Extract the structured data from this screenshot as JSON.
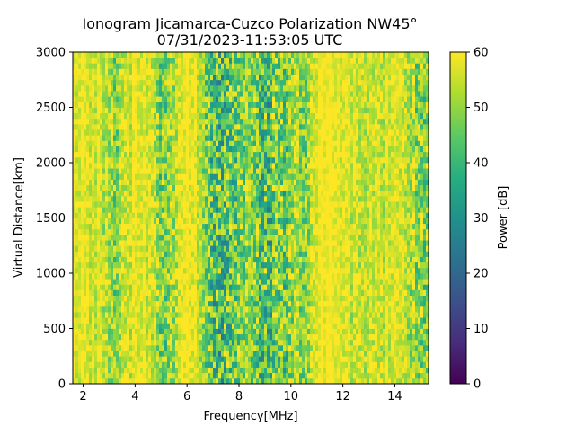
{
  "chart_data": {
    "type": "heatmap",
    "title": "Ionogram Jicamarca-Cuzco Polarization NW45°",
    "subtitle": "07/31/2023-11:53:05 UTC",
    "xlabel": "Frequency[MHz]",
    "ylabel": "Virtual Distance[km]",
    "xlim": [
      1.6,
      15.3
    ],
    "ylim": [
      0,
      3000
    ],
    "x_ticks": [
      2,
      4,
      6,
      8,
      10,
      12,
      14
    ],
    "y_ticks": [
      0,
      500,
      1000,
      1500,
      2000,
      2500,
      3000
    ],
    "colorbar": {
      "label": "Power [dB]",
      "range": [
        0,
        60
      ],
      "ticks": [
        0,
        10,
        20,
        30,
        40,
        50,
        60
      ],
      "colormap": "viridis"
    },
    "grid": false,
    "frequency_profile": {
      "frequency_mhz": [
        1.6,
        2.5,
        2.9,
        3.2,
        3.6,
        4.2,
        4.6,
        5.0,
        5.4,
        6.0,
        6.5,
        6.9,
        7.2,
        7.6,
        8.0,
        8.4,
        8.8,
        9.2,
        9.5,
        9.8,
        10.2,
        10.6,
        11.0,
        11.5,
        12.0,
        12.6,
        13.0,
        13.5,
        14.0,
        14.5,
        14.8,
        15.3
      ],
      "mean_power_db": [
        58,
        57,
        54,
        50,
        55,
        58,
        56,
        48,
        52,
        58,
        56,
        44,
        40,
        43,
        47,
        52,
        44,
        42,
        48,
        46,
        52,
        50,
        58,
        59,
        58,
        54,
        56,
        55,
        58,
        54,
        50,
        48
      ]
    }
  }
}
